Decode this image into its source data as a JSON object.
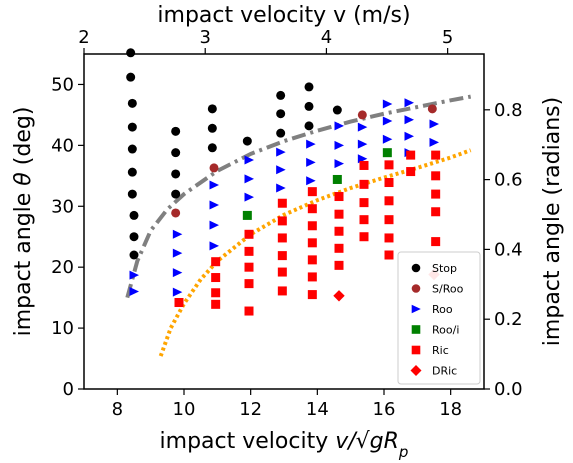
{
  "chart_data": {
    "type": "scatter",
    "bottom_axis": {
      "label_prefix": "impact velocity ",
      "label_math": "v/√gR",
      "label_sub": "p",
      "range": [
        7,
        19
      ],
      "ticks": [
        8,
        10,
        12,
        14,
        16,
        18
      ]
    },
    "top_axis": {
      "label": "impact velocity v (m/s)",
      "range": [
        2,
        5.3
      ],
      "ticks": [
        2,
        3,
        4,
        5
      ]
    },
    "left_axis": {
      "label_prefix": "impact angle ",
      "label_symbol": "θ",
      "label_suffix": " (deg)",
      "range": [
        0,
        55
      ],
      "ticks": [
        0,
        10,
        20,
        30,
        40,
        50
      ]
    },
    "right_axis": {
      "label": "impact angle (radians)",
      "ticks": [
        0.0,
        0.2,
        0.4,
        0.6,
        0.8
      ],
      "tick_labels": [
        "0.0",
        "0.2",
        "0.4",
        "0.6",
        "0.8"
      ]
    },
    "series": [
      {
        "name": "Stop",
        "marker": "circle",
        "color": "#000000",
        "points": [
          [
            8.4,
            55.2
          ],
          [
            8.4,
            51.2
          ],
          [
            8.45,
            46.9
          ],
          [
            8.45,
            43.0
          ],
          [
            8.45,
            39.4
          ],
          [
            8.45,
            35.6
          ],
          [
            8.45,
            32.0
          ],
          [
            8.5,
            28.5
          ],
          [
            8.5,
            25.0
          ],
          [
            8.5,
            22.0
          ],
          [
            9.75,
            42.3
          ],
          [
            9.75,
            38.8
          ],
          [
            9.75,
            35.3
          ],
          [
            9.75,
            32.0
          ],
          [
            10.85,
            46.0
          ],
          [
            10.85,
            42.8
          ],
          [
            10.85,
            39.6
          ],
          [
            11.9,
            40.7
          ],
          [
            12.9,
            48.2
          ],
          [
            12.9,
            45.2
          ],
          [
            12.9,
            42.0
          ],
          [
            13.75,
            49.6
          ],
          [
            13.75,
            46.4
          ],
          [
            13.75,
            43.2
          ],
          [
            14.6,
            45.8
          ]
        ]
      },
      {
        "name": "S/Roo",
        "marker": "circle",
        "color": "#a52a2a",
        "points": [
          [
            9.75,
            28.9
          ],
          [
            10.9,
            36.3
          ],
          [
            15.35,
            45.0
          ],
          [
            17.45,
            46.0
          ]
        ]
      },
      {
        "name": "Roo",
        "marker": "triangle-right",
        "color": "#0000ff",
        "points": [
          [
            8.5,
            18.7
          ],
          [
            8.5,
            16.0
          ],
          [
            9.8,
            25.4
          ],
          [
            9.8,
            22.3
          ],
          [
            9.8,
            19.1
          ],
          [
            9.8,
            15.9
          ],
          [
            10.9,
            33.5
          ],
          [
            10.9,
            30.2
          ],
          [
            10.9,
            26.9
          ],
          [
            10.9,
            23.5
          ],
          [
            11.95,
            37.6
          ],
          [
            11.95,
            34.5
          ],
          [
            11.95,
            31.5
          ],
          [
            12.9,
            38.9
          ],
          [
            12.9,
            36.0
          ],
          [
            12.9,
            33.0
          ],
          [
            13.8,
            40.2
          ],
          [
            13.8,
            37.2
          ],
          [
            13.8,
            34.2
          ],
          [
            14.65,
            43.2
          ],
          [
            14.65,
            40.0
          ],
          [
            14.65,
            37.0
          ],
          [
            15.35,
            43.0
          ],
          [
            15.35,
            40.2
          ],
          [
            15.35,
            37.8
          ],
          [
            16.1,
            46.8
          ],
          [
            16.1,
            44.0
          ],
          [
            16.1,
            41.0
          ],
          [
            16.75,
            47.0
          ],
          [
            16.75,
            44.2
          ],
          [
            16.75,
            41.5
          ],
          [
            16.75,
            38.8
          ],
          [
            17.5,
            43.5
          ],
          [
            17.5,
            40.5
          ]
        ]
      },
      {
        "name": "Roo/i",
        "marker": "square",
        "color": "#008000",
        "points": [
          [
            11.9,
            28.5
          ],
          [
            14.6,
            34.4
          ],
          [
            16.1,
            38.8
          ]
        ]
      },
      {
        "name": "Ric",
        "marker": "square",
        "color": "#ff0000",
        "points": [
          [
            9.85,
            14.2
          ],
          [
            10.95,
            20.9
          ],
          [
            10.95,
            18.3
          ],
          [
            10.95,
            15.8
          ],
          [
            10.95,
            13.9
          ],
          [
            11.95,
            25.4
          ],
          [
            11.95,
            22.6
          ],
          [
            11.95,
            20.0
          ],
          [
            11.95,
            17.3
          ],
          [
            11.95,
            12.8
          ],
          [
            12.95,
            30.5
          ],
          [
            12.95,
            27.6
          ],
          [
            12.95,
            24.8
          ],
          [
            12.95,
            21.9
          ],
          [
            12.95,
            19.2
          ],
          [
            12.95,
            16.1
          ],
          [
            13.85,
            32.4
          ],
          [
            13.85,
            29.6
          ],
          [
            13.85,
            26.8
          ],
          [
            13.85,
            24.0
          ],
          [
            13.85,
            21.2
          ],
          [
            13.85,
            18.4
          ],
          [
            13.85,
            15.5
          ],
          [
            14.65,
            31.6
          ],
          [
            14.65,
            28.7
          ],
          [
            14.65,
            25.9
          ],
          [
            14.65,
            23.1
          ],
          [
            14.65,
            20.3
          ],
          [
            15.4,
            36.7
          ],
          [
            15.4,
            33.6
          ],
          [
            15.4,
            30.6
          ],
          [
            15.4,
            27.8
          ],
          [
            15.4,
            25.0
          ],
          [
            16.15,
            36.8
          ],
          [
            16.15,
            33.9
          ],
          [
            16.15,
            30.9
          ],
          [
            16.15,
            27.8
          ],
          [
            16.15,
            24.8
          ],
          [
            16.15,
            22.0
          ],
          [
            16.8,
            38.4
          ],
          [
            16.8,
            35.7
          ],
          [
            17.55,
            38.4
          ],
          [
            17.55,
            35.0
          ],
          [
            17.55,
            32.0
          ],
          [
            17.55,
            29.1
          ],
          [
            17.55,
            24.2
          ]
        ]
      },
      {
        "name": "DRic",
        "marker": "diamond",
        "color": "#ff0000",
        "points": [
          [
            14.65,
            15.3
          ],
          [
            17.5,
            18.8
          ]
        ]
      }
    ],
    "curves": [
      {
        "style": "dashdot",
        "color": "#808080",
        "points": [
          [
            8.3,
            15.0
          ],
          [
            8.6,
            21.0
          ],
          [
            9.0,
            26.0
          ],
          [
            9.5,
            29.5
          ],
          [
            10.0,
            32.0
          ],
          [
            11.0,
            35.8
          ],
          [
            12.0,
            38.6
          ],
          [
            13.0,
            40.7
          ],
          [
            14.0,
            42.4
          ],
          [
            15.0,
            43.9
          ],
          [
            16.0,
            45.2
          ],
          [
            17.0,
            46.3
          ],
          [
            18.0,
            47.4
          ],
          [
            18.6,
            48.0
          ]
        ]
      },
      {
        "style": "dotted",
        "color": "#ffa500",
        "points": [
          [
            9.3,
            5.4
          ],
          [
            9.6,
            10.0
          ],
          [
            10.0,
            14.0
          ],
          [
            10.5,
            18.0
          ],
          [
            11.0,
            21.0
          ],
          [
            12.0,
            25.4
          ],
          [
            13.0,
            28.6
          ],
          [
            14.0,
            31.0
          ],
          [
            15.0,
            33.0
          ],
          [
            16.0,
            34.7
          ],
          [
            17.0,
            36.3
          ],
          [
            18.0,
            38.0
          ],
          [
            18.6,
            39.2
          ]
        ]
      }
    ],
    "legend_position": "lower-right"
  }
}
